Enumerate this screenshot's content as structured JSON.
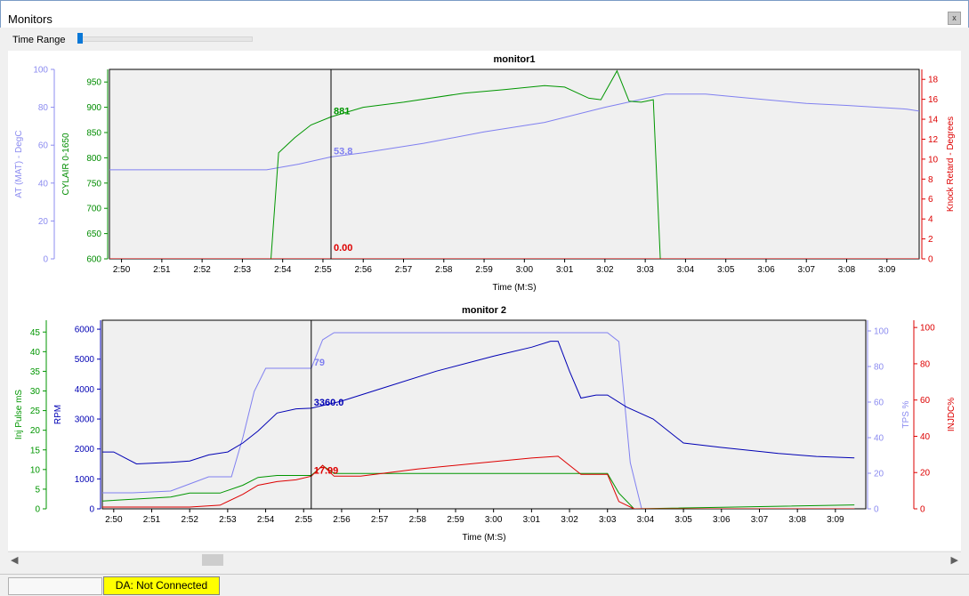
{
  "window": {
    "title": "Monitors",
    "close_glyph": "x"
  },
  "toolbar": {
    "time_range_label": "Time Range",
    "time_range_value": 0.0
  },
  "statusbar": {
    "da_status": "DA: Not Connected",
    "da_color": "#ffff00"
  },
  "icons": {
    "close": "close-icon",
    "scroll_left": "chevron-left-icon",
    "scroll_right": "chevron-right-icon"
  },
  "chart_data": [
    {
      "type": "line",
      "title": "monitor1",
      "xlabel": "Time (M:S)",
      "x_ticks": [
        "2:50",
        "2:51",
        "2:52",
        "2:53",
        "2:54",
        "2:55",
        "2:56",
        "2:57",
        "2:58",
        "2:59",
        "3:00",
        "3:01",
        "3:02",
        "3:03",
        "3:04",
        "3:05",
        "3:06",
        "3:07",
        "3:08",
        "3:09"
      ],
      "x_range_s": [
        169.7,
        189.8
      ],
      "cursor_s": 175.2,
      "grid": false,
      "axes": [
        {
          "key": "at",
          "label": "AT (MAT)  - DegC",
          "side": "left",
          "range": [
            0,
            100
          ],
          "ticks": [
            0,
            20,
            40,
            60,
            80,
            100
          ],
          "color": "#8c8cf0"
        },
        {
          "key": "cyl",
          "label": "CYLAIR 0-1650",
          "side": "left",
          "range": [
            600,
            975
          ],
          "ticks": [
            600,
            650,
            700,
            750,
            800,
            850,
            900,
            950
          ],
          "color": "#008c00"
        },
        {
          "key": "knock",
          "label": "Knock Retard - Degrees",
          "side": "right",
          "range": [
            0,
            19
          ],
          "ticks": [
            0,
            2,
            4,
            6,
            8,
            10,
            12,
            14,
            16,
            18
          ],
          "color": "#dd0000"
        }
      ],
      "series": [
        {
          "axis": "at",
          "color": "#8080f0",
          "cursor_value": "53.8",
          "points": [
            [
              169.7,
              47
            ],
            [
              173.6,
              47
            ],
            [
              174.4,
              50
            ],
            [
              175.2,
              53.8
            ],
            [
              176.0,
              56
            ],
            [
              177.5,
              61
            ],
            [
              179.0,
              67
            ],
            [
              180.5,
              72
            ],
            [
              182.0,
              80
            ],
            [
              183.5,
              87
            ],
            [
              184.5,
              87
            ],
            [
              185.5,
              85
            ],
            [
              187.0,
              82
            ],
            [
              188.0,
              81
            ],
            [
              189.5,
              79
            ],
            [
              189.8,
              78
            ]
          ]
        },
        {
          "axis": "cyl",
          "color": "#009600",
          "cursor_value": "881",
          "points": [
            [
              169.7,
              440
            ],
            [
              173.6,
              480
            ],
            [
              173.9,
              810
            ],
            [
              174.3,
              840
            ],
            [
              174.7,
              865
            ],
            [
              175.2,
              881
            ],
            [
              176.0,
              900
            ],
            [
              177.0,
              910
            ],
            [
              178.5,
              928
            ],
            [
              179.5,
              935
            ],
            [
              180.5,
              943
            ],
            [
              181.0,
              940
            ],
            [
              181.6,
              918
            ],
            [
              181.9,
              915
            ],
            [
              182.3,
              972
            ],
            [
              182.6,
              912
            ],
            [
              182.9,
              910
            ],
            [
              183.2,
              915
            ],
            [
              183.4,
              555
            ]
          ]
        },
        {
          "axis": "knock",
          "color": "#dd0000",
          "cursor_value": "0.00",
          "points": [
            [
              169.7,
              0
            ],
            [
              189.8,
              0
            ]
          ]
        }
      ]
    },
    {
      "type": "line",
      "title": "monitor 2",
      "xlabel": "Time (M:S)",
      "x_ticks": [
        "2:50",
        "2:51",
        "2:52",
        "2:53",
        "2:54",
        "2:55",
        "2:56",
        "2:57",
        "2:58",
        "2:59",
        "3:00",
        "3:01",
        "3:02",
        "3:03",
        "3:04",
        "3:05",
        "3:06",
        "3:07",
        "3:08",
        "3:09"
      ],
      "x_range_s": [
        169.7,
        189.8
      ],
      "cursor_s": 175.2,
      "grid": false,
      "axes": [
        {
          "key": "inj",
          "label": "Inj Pulse mS",
          "side": "left",
          "range": [
            0,
            48
          ],
          "ticks": [
            0,
            5,
            10,
            15,
            20,
            25,
            30,
            35,
            40,
            45
          ],
          "color": "#009600"
        },
        {
          "key": "rpm",
          "label": "RPM",
          "side": "left",
          "range": [
            0,
            6300
          ],
          "ticks": [
            0,
            1000,
            2000,
            3000,
            4000,
            5000,
            6000
          ],
          "color": "#0000b4"
        },
        {
          "key": "tps",
          "label": "TPS %",
          "side": "right",
          "range": [
            0,
            106
          ],
          "ticks": [
            0,
            20,
            40,
            60,
            80,
            100
          ],
          "color": "#8c8cf0"
        },
        {
          "key": "injdc",
          "label": "INJDC%",
          "side": "right",
          "range": [
            0,
            104
          ],
          "ticks": [
            0,
            20,
            40,
            60,
            80,
            100
          ],
          "color": "#dd0000"
        }
      ],
      "series": [
        {
          "axis": "tps",
          "color": "#8080f0",
          "cursor_value": "79",
          "points": [
            [
              169.7,
              9
            ],
            [
              170.5,
              9
            ],
            [
              171.5,
              10
            ],
            [
              172.0,
              14
            ],
            [
              172.5,
              18
            ],
            [
              173.1,
              18
            ],
            [
              173.4,
              40
            ],
            [
              173.7,
              66
            ],
            [
              174.0,
              79
            ],
            [
              174.7,
              79
            ],
            [
              175.2,
              79
            ],
            [
              175.5,
              95
            ],
            [
              175.8,
              99
            ],
            [
              180.0,
              99
            ],
            [
              183.0,
              99
            ],
            [
              183.3,
              94
            ],
            [
              183.6,
              26
            ],
            [
              183.9,
              0
            ],
            [
              189.5,
              0
            ]
          ]
        },
        {
          "axis": "rpm",
          "color": "#0000b4",
          "cursor_value": "3360.0",
          "points": [
            [
              169.7,
              1900
            ],
            [
              170.0,
              1900
            ],
            [
              170.3,
              1700
            ],
            [
              170.6,
              1500
            ],
            [
              171.5,
              1550
            ],
            [
              172.0,
              1600
            ],
            [
              172.5,
              1800
            ],
            [
              173.0,
              1900
            ],
            [
              173.4,
              2200
            ],
            [
              173.8,
              2600
            ],
            [
              174.3,
              3200
            ],
            [
              174.8,
              3340
            ],
            [
              175.2,
              3360
            ],
            [
              176.0,
              3600
            ],
            [
              177.0,
              4000
            ],
            [
              178.5,
              4600
            ],
            [
              180.0,
              5100
            ],
            [
              181.0,
              5400
            ],
            [
              181.5,
              5600
            ],
            [
              181.7,
              5600
            ],
            [
              182.0,
              4600
            ],
            [
              182.3,
              3700
            ],
            [
              182.7,
              3800
            ],
            [
              183.0,
              3800
            ],
            [
              183.5,
              3400
            ],
            [
              184.2,
              3000
            ],
            [
              185.0,
              2200
            ],
            [
              186.0,
              2050
            ],
            [
              187.5,
              1850
            ],
            [
              188.5,
              1750
            ],
            [
              189.5,
              1700
            ]
          ]
        },
        {
          "axis": "inj",
          "color": "#009600",
          "cursor_value": "",
          "points": [
            [
              169.7,
              2
            ],
            [
              171.5,
              3
            ],
            [
              172.0,
              4
            ],
            [
              172.8,
              4
            ],
            [
              173.4,
              6
            ],
            [
              173.8,
              8
            ],
            [
              174.3,
              8.5
            ],
            [
              174.8,
              8.5
            ],
            [
              175.2,
              8.5
            ],
            [
              175.5,
              11
            ],
            [
              175.8,
              9
            ],
            [
              180.0,
              9
            ],
            [
              181.0,
              9
            ],
            [
              182.5,
              9
            ],
            [
              183.0,
              9
            ],
            [
              183.3,
              4
            ],
            [
              183.7,
              0
            ],
            [
              189.5,
              1
            ]
          ]
        },
        {
          "axis": "injdc",
          "color": "#dd0000",
          "cursor_value": "17.99",
          "points": [
            [
              169.7,
              1
            ],
            [
              172.0,
              1
            ],
            [
              172.8,
              2
            ],
            [
              173.4,
              8
            ],
            [
              173.8,
              13
            ],
            [
              174.3,
              15
            ],
            [
              174.8,
              16
            ],
            [
              175.2,
              17.99
            ],
            [
              175.5,
              24
            ],
            [
              175.8,
              18
            ],
            [
              176.5,
              18
            ],
            [
              178.0,
              22
            ],
            [
              179.5,
              25
            ],
            [
              181.0,
              28
            ],
            [
              181.7,
              29
            ],
            [
              182.3,
              19
            ],
            [
              183.0,
              19
            ],
            [
              183.3,
              4
            ],
            [
              183.7,
              0
            ],
            [
              189.5,
              0
            ]
          ]
        }
      ]
    }
  ]
}
